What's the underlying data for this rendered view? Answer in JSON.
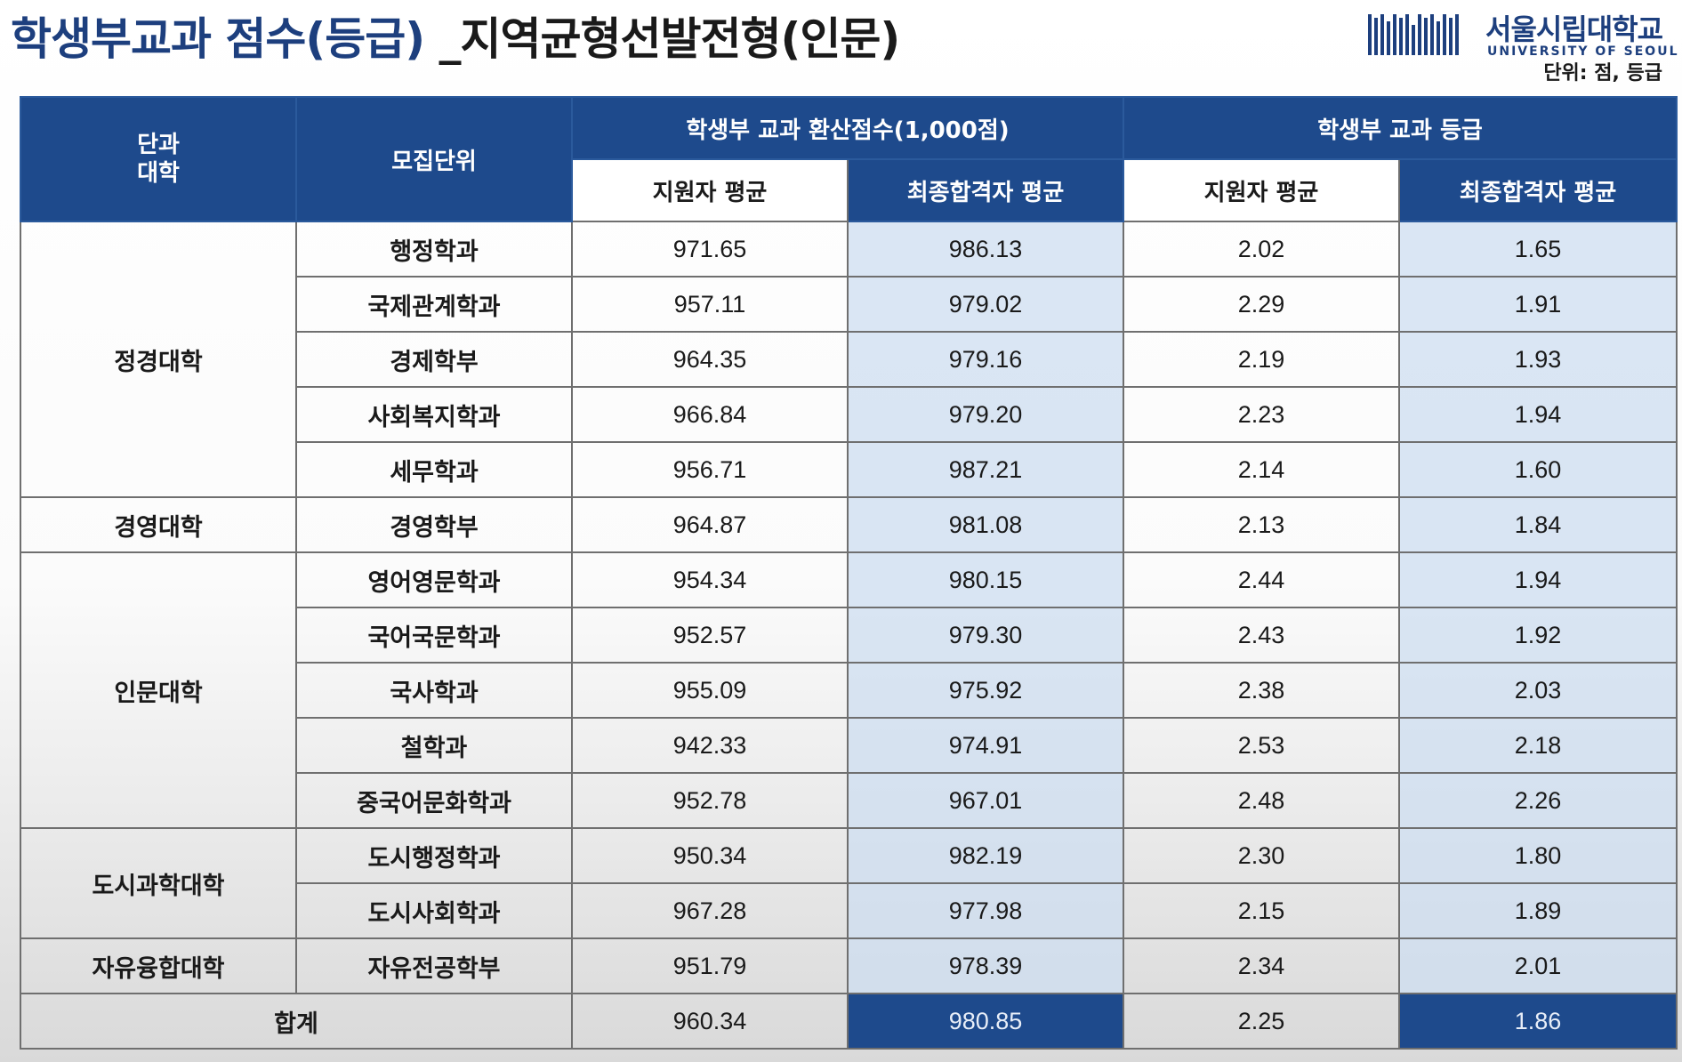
{
  "title": {
    "main": "학생부교과 점수(등급)",
    "rest": " _지역균형선발전형(인문)"
  },
  "logo": {
    "name": "서울시립대학교",
    "sub": "UNIVERSITY OF SEOUL"
  },
  "unit_note": "단위: 점, 등급",
  "header": {
    "college_line1": "단과",
    "college_line2": "대학",
    "dept": "모집단위",
    "score_group": "학생부 교과 환산점수(1,000점)",
    "grade_group": "학생부 교과 등급",
    "applicant_avg": "지원자 평균",
    "final_avg": "최종합격자 평균"
  },
  "rows": [
    {
      "college": "정경대학",
      "dept": "행정학과",
      "score_app": "971.65",
      "score_final": "986.13",
      "grade_app": "2.02",
      "grade_final": "1.65"
    },
    {
      "dept": "국제관계학과",
      "score_app": "957.11",
      "score_final": "979.02",
      "grade_app": "2.29",
      "grade_final": "1.91"
    },
    {
      "dept": "경제학부",
      "score_app": "964.35",
      "score_final": "979.16",
      "grade_app": "2.19",
      "grade_final": "1.93"
    },
    {
      "dept": "사회복지학과",
      "score_app": "966.84",
      "score_final": "979.20",
      "grade_app": "2.23",
      "grade_final": "1.94"
    },
    {
      "dept": "세무학과",
      "score_app": "956.71",
      "score_final": "987.21",
      "grade_app": "2.14",
      "grade_final": "1.60"
    },
    {
      "college": "경영대학",
      "dept": "경영학부",
      "score_app": "964.87",
      "score_final": "981.08",
      "grade_app": "2.13",
      "grade_final": "1.84"
    },
    {
      "college": "인문대학",
      "dept": "영어영문학과",
      "score_app": "954.34",
      "score_final": "980.15",
      "grade_app": "2.44",
      "grade_final": "1.94"
    },
    {
      "dept": "국어국문학과",
      "score_app": "952.57",
      "score_final": "979.30",
      "grade_app": "2.43",
      "grade_final": "1.92"
    },
    {
      "dept": "국사학과",
      "score_app": "955.09",
      "score_final": "975.92",
      "grade_app": "2.38",
      "grade_final": "2.03"
    },
    {
      "dept": "철학과",
      "score_app": "942.33",
      "score_final": "974.91",
      "grade_app": "2.53",
      "grade_final": "2.18"
    },
    {
      "dept": "중국어문화학과",
      "score_app": "952.78",
      "score_final": "967.01",
      "grade_app": "2.48",
      "grade_final": "2.26"
    },
    {
      "college": "도시과학대학",
      "dept": "도시행정학과",
      "score_app": "950.34",
      "score_final": "982.19",
      "grade_app": "2.30",
      "grade_final": "1.80"
    },
    {
      "dept": "도시사회학과",
      "score_app": "967.28",
      "score_final": "977.98",
      "grade_app": "2.15",
      "grade_final": "1.89"
    },
    {
      "college": "자유융합대학",
      "dept": "자유전공학부",
      "score_app": "951.79",
      "score_final": "978.39",
      "grade_app": "2.34",
      "grade_final": "2.01"
    }
  ],
  "total": {
    "label": "합계",
    "score_app": "960.34",
    "score_final": "980.85",
    "grade_app": "2.25",
    "grade_final": "1.86"
  },
  "colors": {
    "header_blue": "#1e4a8c",
    "title_blue": "#1d3f7e",
    "shade_blue": "#cddef0"
  }
}
